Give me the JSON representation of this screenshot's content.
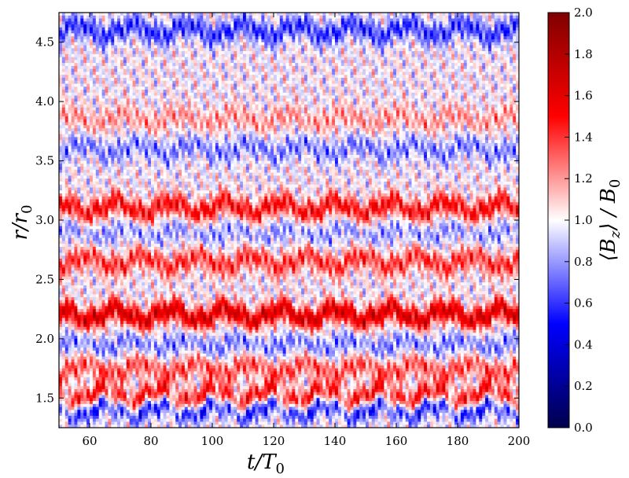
{
  "chart_data": {
    "type": "heatmap",
    "x": {
      "label": "t/T0",
      "range": [
        50,
        200
      ],
      "ticks": [
        60,
        80,
        100,
        120,
        140,
        160,
        180,
        200
      ],
      "tick_labels": [
        "60",
        "80",
        "100",
        "120",
        "140",
        "160",
        "180",
        "200"
      ]
    },
    "y": {
      "label": "r/r0",
      "range": [
        1.25,
        4.75
      ],
      "ticks": [
        1.5,
        2.0,
        2.5,
        3.0,
        3.5,
        4.0,
        4.5
      ],
      "tick_labels": [
        "1.5",
        "2.0",
        "2.5",
        "3.0",
        "3.5",
        "4.0",
        "4.5"
      ]
    },
    "colorbar": {
      "label": "⟨Bz⟩ / B0",
      "colormap": "seismic",
      "range": [
        0.0,
        2.0
      ],
      "ticks": [
        0.0,
        0.2,
        0.4,
        0.6,
        0.8,
        1.0,
        1.2,
        1.4,
        1.6,
        1.8,
        2.0
      ],
      "tick_labels": [
        "0.0",
        "0.2",
        "0.4",
        "0.6",
        "0.8",
        "1.0",
        "1.2",
        "1.4",
        "1.6",
        "1.8",
        "2.0"
      ]
    },
    "bands": [
      {
        "r": 1.42,
        "value": 0.45,
        "note": "blue"
      },
      {
        "r": 1.5,
        "value": 1.6,
        "note": "red"
      },
      {
        "r": 1.75,
        "value": 1.35,
        "note": "red"
      },
      {
        "r": 1.95,
        "value": 0.75,
        "note": "blue"
      },
      {
        "r": 2.2,
        "value": 1.65,
        "note": "red"
      },
      {
        "r": 2.65,
        "value": 1.4,
        "note": "red"
      },
      {
        "r": 2.9,
        "value": 0.8,
        "note": "blue"
      },
      {
        "r": 3.1,
        "value": 1.5,
        "note": "red"
      },
      {
        "r": 3.6,
        "value": 0.75,
        "note": "blue"
      },
      {
        "r": 3.85,
        "value": 1.2,
        "note": "red"
      },
      {
        "r": 4.6,
        "value": 0.6,
        "note": "blue"
      }
    ]
  }
}
